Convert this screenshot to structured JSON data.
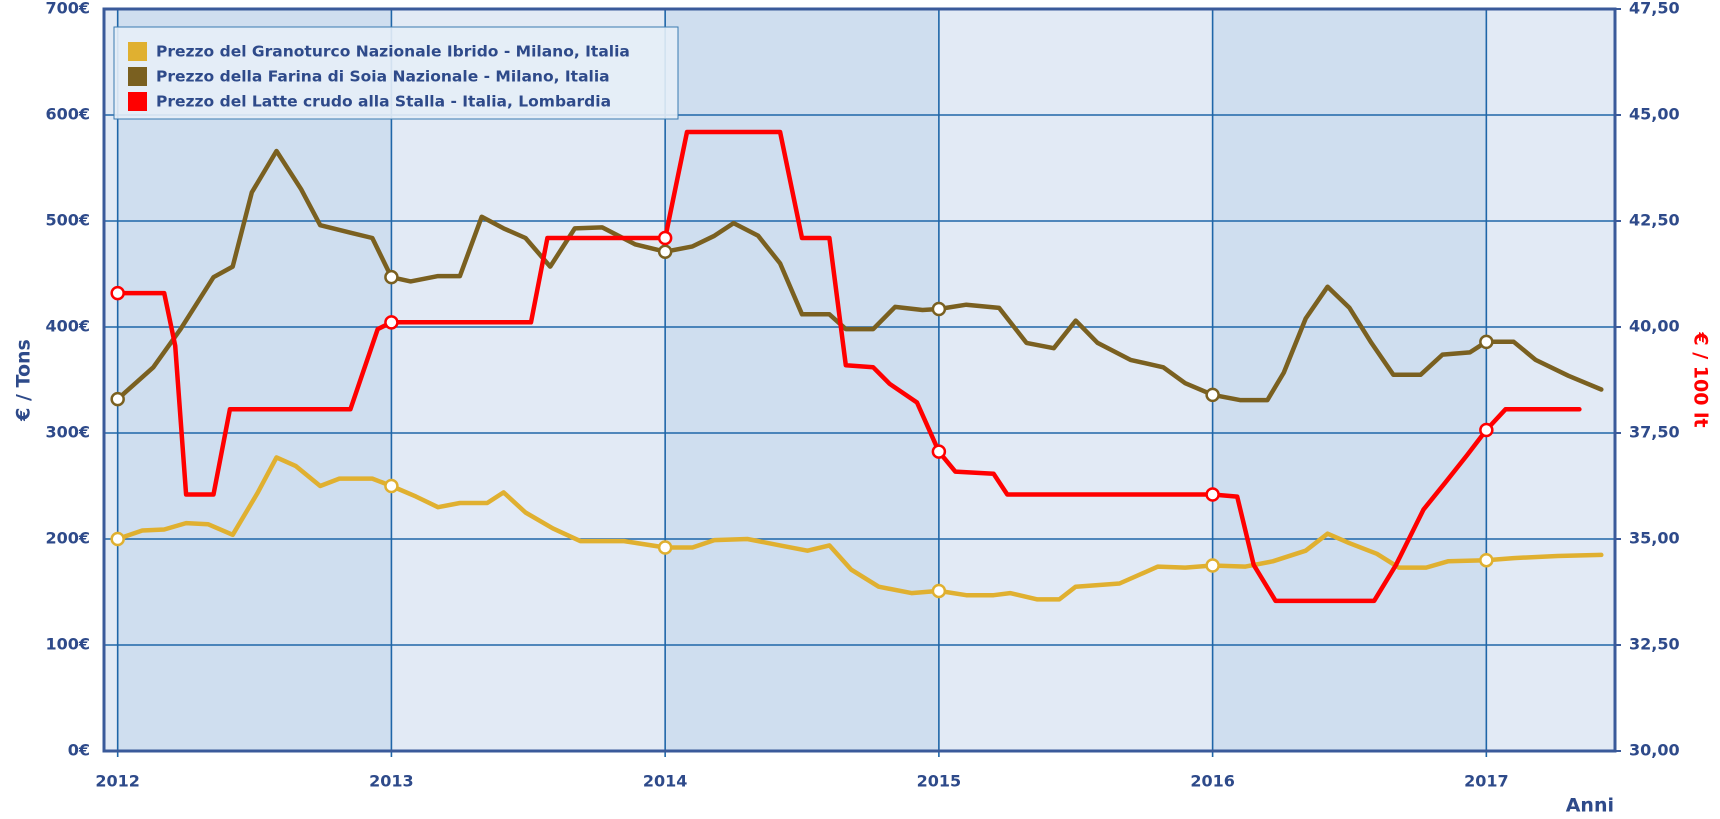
{
  "chart_data": {
    "type": "line",
    "ylabel": "€ / Tons",
    "y2label": "€ / 100 lt",
    "xlabel": "Anni",
    "xlim": [
      2011.95,
      2017.47
    ],
    "xticks": [
      2012,
      2013,
      2014,
      2015,
      2016,
      2017
    ],
    "ylim": [
      0,
      700
    ],
    "yticks": [
      {
        "value": 0,
        "label": "0€"
      },
      {
        "value": 100,
        "label": "100€"
      },
      {
        "value": 200,
        "label": "200€"
      },
      {
        "value": 300,
        "label": "300€"
      },
      {
        "value": 400,
        "label": "400€"
      },
      {
        "value": 500,
        "label": "500€"
      },
      {
        "value": 600,
        "label": "600€"
      },
      {
        "value": 700,
        "label": "700€"
      }
    ],
    "y2lim": [
      30,
      47.5
    ],
    "y2ticks": [
      {
        "value": 30,
        "label": "30,00"
      },
      {
        "value": 32.5,
        "label": "32,50"
      },
      {
        "value": 35,
        "label": "35,00"
      },
      {
        "value": 37.5,
        "label": "37,50"
      },
      {
        "value": 40,
        "label": "40,00"
      },
      {
        "value": 42.5,
        "label": "42,50"
      },
      {
        "value": 45,
        "label": "45,00"
      },
      {
        "value": 47.5,
        "label": "47,50"
      }
    ],
    "grid": true,
    "legend": "top-left",
    "series": [
      {
        "name": "Prezzo del Granoturco Nazionale Ibrido - Milano, Italia",
        "color": "#e0b030",
        "x": [
          2012.0,
          2012.09,
          2012.17,
          2012.25,
          2012.33,
          2012.42,
          2012.51,
          2012.58,
          2012.65,
          2012.74,
          2012.81,
          2012.93,
          2013.0,
          2013.09,
          2013.17,
          2013.25,
          2013.35,
          2013.41,
          2013.49,
          2013.59,
          2013.69,
          2013.85,
          2014.0,
          2014.1,
          2014.18,
          2014.3,
          2014.42,
          2014.52,
          2014.6,
          2014.68,
          2014.78,
          2014.9,
          2015.0,
          2015.1,
          2015.2,
          2015.26,
          2015.36,
          2015.44,
          2015.5,
          2015.66,
          2015.8,
          2015.9,
          2016.0,
          2016.12,
          2016.22,
          2016.34,
          2016.42,
          2016.5,
          2016.6,
          2016.68,
          2016.78,
          2016.86,
          2017.0,
          2017.1,
          2017.26,
          2017.42
        ],
        "values": [
          200,
          208,
          209,
          215,
          214,
          204,
          243,
          277,
          269,
          250,
          257,
          257,
          250,
          240,
          230,
          234,
          234,
          244,
          225,
          210,
          198,
          198,
          192,
          192,
          199,
          200,
          194,
          189,
          194,
          171,
          155,
          149,
          151,
          147,
          147,
          149,
          143,
          143,
          155,
          158,
          174,
          173,
          175,
          174,
          179,
          189,
          205,
          196,
          186,
          173,
          173,
          179,
          180,
          182,
          184,
          185
        ]
      },
      {
        "name": "Prezzo della Farina di Soia Nazionale - Milano, Italia",
        "color": "#7a6020",
        "x": [
          2012.0,
          2012.13,
          2012.23,
          2012.35,
          2012.42,
          2012.49,
          2012.58,
          2012.67,
          2012.74,
          2012.85,
          2012.93,
          2013.0,
          2013.07,
          2013.17,
          2013.25,
          2013.33,
          2013.41,
          2013.49,
          2013.58,
          2013.67,
          2013.77,
          2013.89,
          2014.0,
          2014.1,
          2014.18,
          2014.25,
          2014.34,
          2014.42,
          2014.5,
          2014.6,
          2014.66,
          2014.76,
          2014.84,
          2014.94,
          2015.0,
          2015.1,
          2015.22,
          2015.32,
          2015.42,
          2015.5,
          2015.58,
          2015.7,
          2015.82,
          2015.9,
          2016.0,
          2016.1,
          2016.2,
          2016.26,
          2016.34,
          2016.42,
          2016.5,
          2016.58,
          2016.66,
          2016.76,
          2016.84,
          2016.94,
          2017.0,
          2017.1,
          2017.18,
          2017.3,
          2017.42
        ],
        "values": [
          332,
          362,
          398,
          447,
          457,
          527,
          566,
          530,
          496,
          489,
          484,
          447,
          443,
          448,
          448,
          504,
          493,
          484,
          457,
          493,
          494,
          478,
          471,
          476,
          486,
          498,
          486,
          460,
          412,
          412,
          398,
          398,
          419,
          416,
          417,
          421,
          418,
          385,
          380,
          406,
          385,
          369,
          362,
          347,
          336,
          331,
          331,
          357,
          408,
          438,
          418,
          385,
          355,
          355,
          374,
          376,
          386,
          386,
          369,
          354,
          341
        ]
      },
      {
        "name": "Prezzo del Latte crudo alla Stalla - Italia, Lombardia",
        "color": "#ff0000",
        "axis": "y2",
        "x": [
          2012.0,
          2012.17,
          2012.21,
          2012.25,
          2012.35,
          2012.41,
          2012.85,
          2012.95,
          2013.0,
          2013.13,
          2013.51,
          2013.57,
          2014.0,
          2014.08,
          2014.42,
          2014.5,
          2014.6,
          2014.66,
          2014.76,
          2014.82,
          2014.92,
          2015.0,
          2015.06,
          2015.2,
          2015.25,
          2016.0,
          2016.09,
          2016.15,
          2016.23,
          2016.59,
          2016.67,
          2016.77,
          2016.85,
          2016.93,
          2017.0,
          2017.07,
          2017.34
        ],
        "values": [
          40.8,
          40.8,
          39.56,
          36.05,
          36.05,
          38.06,
          38.06,
          39.95,
          40.11,
          40.11,
          40.11,
          42.1,
          42.1,
          44.6,
          44.6,
          42.1,
          42.1,
          39.1,
          39.05,
          38.66,
          38.22,
          37.06,
          36.59,
          36.54,
          36.05,
          36.05,
          36.0,
          34.39,
          33.54,
          33.54,
          34.39,
          35.69,
          36.33,
          36.98,
          37.57,
          38.06,
          38.06
        ]
      }
    ]
  }
}
